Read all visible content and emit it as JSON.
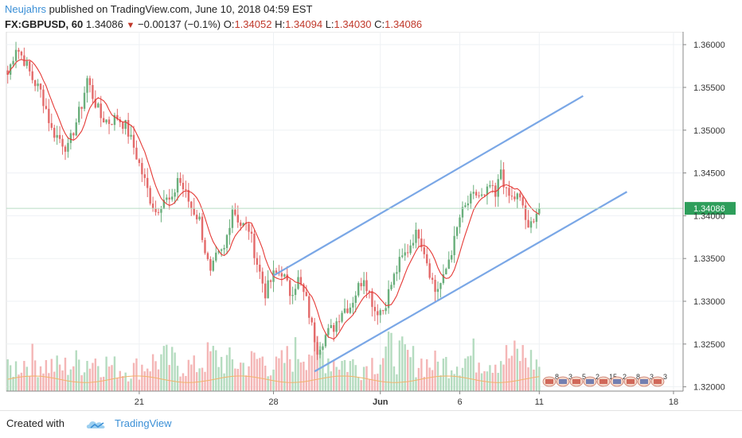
{
  "header": {
    "author": "Neujahrs",
    "published_text": "published on TradingView.com, June 10, 2018 04:59 EST"
  },
  "symbol_row": {
    "symbol": "FX:GBPUSD, 60",
    "last": "1.34086",
    "change": "−0.00137 (−0.1%)",
    "o_label": "O:",
    "o_value": "1.34052",
    "h_label": "H:",
    "h_value": "1.34094",
    "l_label": "L:",
    "l_value": "1.34030",
    "c_label": "C:",
    "c_value": "1.34086"
  },
  "footer": {
    "created_with": "Created with",
    "brand": "TradingView"
  },
  "colors": {
    "up": "#6aaf7c",
    "down": "#e36a6a",
    "ma": "#e53935",
    "channel": "#7aa7e6",
    "volume_up": "#b5dcc0",
    "volume_down": "#f4b6b6",
    "volume_ma": "#f2b36b",
    "price_tag": "#2e9e5b",
    "grid": "#eef1f4"
  },
  "chart_data": {
    "type": "candlestick",
    "ylim": [
      1.3195,
      1.3615
    ],
    "y_ticks": [
      "1.36000",
      "1.35500",
      "1.35000",
      "1.34500",
      "1.34000",
      "1.33500",
      "1.33000",
      "1.32500",
      "1.32000"
    ],
    "y_tick_values": [
      1.36,
      1.355,
      1.35,
      1.345,
      1.34,
      1.335,
      1.33,
      1.325,
      1.32
    ],
    "x_ticks": [
      "21",
      "28",
      "Jun",
      "6",
      "11",
      "18"
    ],
    "x_tick_index": [
      48,
      97,
      136,
      165,
      194,
      243
    ],
    "total_bars": 247,
    "last_price_label": "1.34086",
    "last_price": 1.34086,
    "anchors": [
      [
        0,
        1.3565
      ],
      [
        3,
        1.3598
      ],
      [
        6,
        1.3582
      ],
      [
        9,
        1.356
      ],
      [
        12,
        1.3545
      ],
      [
        14,
        1.3525
      ],
      [
        16,
        1.35
      ],
      [
        19,
        1.349
      ],
      [
        22,
        1.3478
      ],
      [
        24,
        1.35
      ],
      [
        27,
        1.353
      ],
      [
        29,
        1.356
      ],
      [
        31,
        1.354
      ],
      [
        34,
        1.3515
      ],
      [
        37,
        1.351
      ],
      [
        40,
        1.3515
      ],
      [
        43,
        1.3505
      ],
      [
        46,
        1.348
      ],
      [
        49,
        1.345
      ],
      [
        52,
        1.342
      ],
      [
        54,
        1.3405
      ],
      [
        57,
        1.342
      ],
      [
        60,
        1.3415
      ],
      [
        62,
        1.3445
      ],
      [
        64,
        1.3432
      ],
      [
        67,
        1.341
      ],
      [
        70,
        1.3395
      ],
      [
        72,
        1.336
      ],
      [
        74,
        1.333
      ],
      [
        76,
        1.335
      ],
      [
        79,
        1.336
      ],
      [
        82,
        1.341
      ],
      [
        85,
        1.339
      ],
      [
        88,
        1.3385
      ],
      [
        91,
        1.3345
      ],
      [
        94,
        1.331
      ],
      [
        97,
        1.333
      ],
      [
        100,
        1.3335
      ],
      [
        103,
        1.331
      ],
      [
        106,
        1.3325
      ],
      [
        109,
        1.33
      ],
      [
        111,
        1.327
      ],
      [
        113,
        1.3245
      ],
      [
        116,
        1.326
      ],
      [
        119,
        1.327
      ],
      [
        122,
        1.329
      ],
      [
        125,
        1.3295
      ],
      [
        127,
        1.331
      ],
      [
        130,
        1.333
      ],
      [
        132,
        1.331
      ],
      [
        134,
        1.329
      ],
      [
        137,
        1.329
      ],
      [
        140,
        1.332
      ],
      [
        143,
        1.3345
      ],
      [
        146,
        1.336
      ],
      [
        148,
        1.3375
      ],
      [
        150,
        1.338
      ],
      [
        152,
        1.336
      ],
      [
        154,
        1.3335
      ],
      [
        156,
        1.3312
      ],
      [
        159,
        1.3325
      ],
      [
        161,
        1.335
      ],
      [
        163,
        1.337
      ],
      [
        165,
        1.3398
      ],
      [
        168,
        1.3415
      ],
      [
        171,
        1.3425
      ],
      [
        174,
        1.342
      ],
      [
        176,
        1.3435
      ],
      [
        178,
        1.342
      ],
      [
        180,
        1.3455
      ],
      [
        182,
        1.3425
      ],
      [
        184,
        1.342
      ],
      [
        186,
        1.3422
      ],
      [
        188,
        1.3412
      ],
      [
        190,
        1.338
      ],
      [
        192,
        1.34
      ],
      [
        194,
        1.3409
      ]
    ],
    "volumes": [
      [
        0,
        0.35
      ],
      [
        8,
        0.55
      ],
      [
        14,
        0.45
      ],
      [
        20,
        0.4
      ],
      [
        26,
        0.5
      ],
      [
        32,
        0.55
      ],
      [
        38,
        0.42
      ],
      [
        44,
        0.35
      ],
      [
        50,
        0.45
      ],
      [
        56,
        0.55
      ],
      [
        62,
        0.48
      ],
      [
        68,
        0.4
      ],
      [
        74,
        0.6
      ],
      [
        80,
        0.5
      ],
      [
        86,
        0.45
      ],
      [
        92,
        0.55
      ],
      [
        98,
        0.4
      ],
      [
        104,
        0.62
      ],
      [
        110,
        0.75
      ],
      [
        114,
        0.68
      ],
      [
        118,
        0.55
      ],
      [
        124,
        0.48
      ],
      [
        130,
        0.42
      ],
      [
        136,
        0.58
      ],
      [
        140,
        0.7
      ],
      [
        146,
        0.55
      ],
      [
        152,
        0.48
      ],
      [
        158,
        0.45
      ],
      [
        164,
        0.52
      ],
      [
        170,
        0.6
      ],
      [
        176,
        0.55
      ],
      [
        182,
        0.58
      ],
      [
        188,
        0.62
      ],
      [
        194,
        0.45
      ]
    ],
    "regression_channel": {
      "upper": [
        [
          97,
          1.333
        ],
        [
          210,
          1.354
        ]
      ],
      "lower": [
        [
          112,
          1.3218
        ],
        [
          226,
          1.3428
        ]
      ]
    },
    "event_markers": [
      "8",
      "3",
      "5",
      "2",
      "15",
      "2",
      "8",
      "3",
      "3"
    ]
  }
}
